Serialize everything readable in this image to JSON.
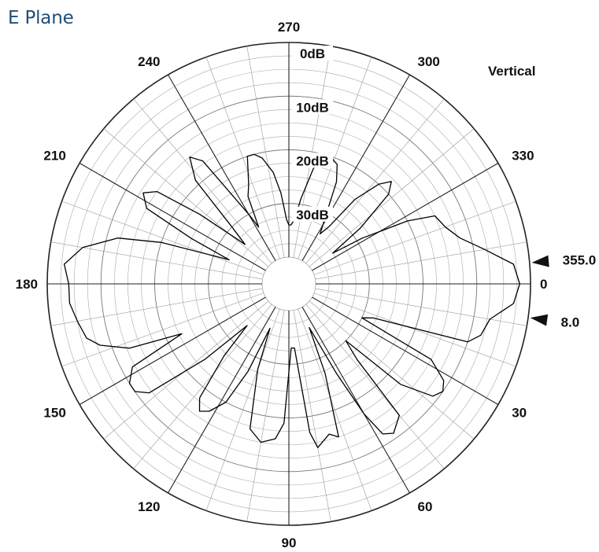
{
  "page": {
    "title": "E Plane"
  },
  "chart_data": {
    "type": "polar",
    "polarization": "Vertical",
    "angle_unit": "degrees",
    "angle_ticks": [
      "0",
      "30",
      "60",
      "90",
      "120",
      "150",
      "180",
      "210",
      "240",
      "270",
      "300",
      "330"
    ],
    "radial_ticks": [
      "0dB",
      "10dB",
      "20dB",
      "30dB"
    ],
    "radial_range_db": [
      -40,
      0
    ],
    "markers": [
      "355.0",
      "8.0"
    ],
    "grid": true,
    "series": [
      {
        "angles_deg": [
          0,
          5,
          10,
          15,
          18,
          22,
          25,
          28,
          32,
          35,
          38,
          42,
          45,
          48,
          50,
          55,
          58,
          60,
          62,
          65,
          68,
          72,
          75,
          80,
          82,
          85,
          88,
          92,
          95,
          100,
          105,
          110,
          113,
          115,
          118,
          122,
          125,
          128,
          132,
          135,
          138,
          142,
          145,
          148,
          152,
          155,
          158,
          162,
          165,
          170,
          175,
          180,
          185,
          190,
          195,
          198,
          202,
          205,
          208,
          212,
          215,
          218,
          222,
          225,
          228,
          232,
          235,
          240,
          242,
          245,
          248,
          252,
          255,
          258,
          262,
          265,
          268,
          270,
          272,
          275,
          278,
          282,
          285,
          288,
          292,
          295,
          298,
          302,
          305,
          308,
          312,
          315,
          318,
          322,
          325,
          328,
          332,
          335,
          340,
          345,
          350,
          355,
          360
        ],
        "values_db": [
          -2,
          -3,
          -7,
          -8,
          -10,
          -28,
          -30,
          -15,
          -11,
          -10,
          -11,
          -17,
          -30,
          -26,
          -13,
          -11,
          -12,
          -17,
          -26,
          -36,
          -27,
          -15,
          -16,
          -14,
          -17,
          -33,
          -33,
          -19,
          -16,
          -15,
          -17,
          -28,
          -36,
          -27,
          -20,
          -17,
          -16,
          -18,
          -27,
          -34,
          -24,
          -12,
          -10,
          -10,
          -12,
          -23,
          -13,
          -8,
          -6,
          -5,
          -4,
          -4,
          -3,
          -6,
          -12,
          -20,
          -33,
          -25,
          -15,
          -13,
          -15,
          -24,
          -34,
          -30,
          -19,
          -15,
          -17,
          -30,
          -33,
          -27,
          -25,
          -20,
          -20,
          -21,
          -24,
          -28,
          -33,
          -34,
          -34,
          -33,
          -29,
          -23,
          -21,
          -20,
          -21,
          -24,
          -30,
          -34,
          -32,
          -25,
          -20,
          -18,
          -20,
          -28,
          -35,
          -29,
          -20,
          -15,
          -14,
          -12,
          -8,
          -3,
          -2
        ]
      }
    ]
  }
}
